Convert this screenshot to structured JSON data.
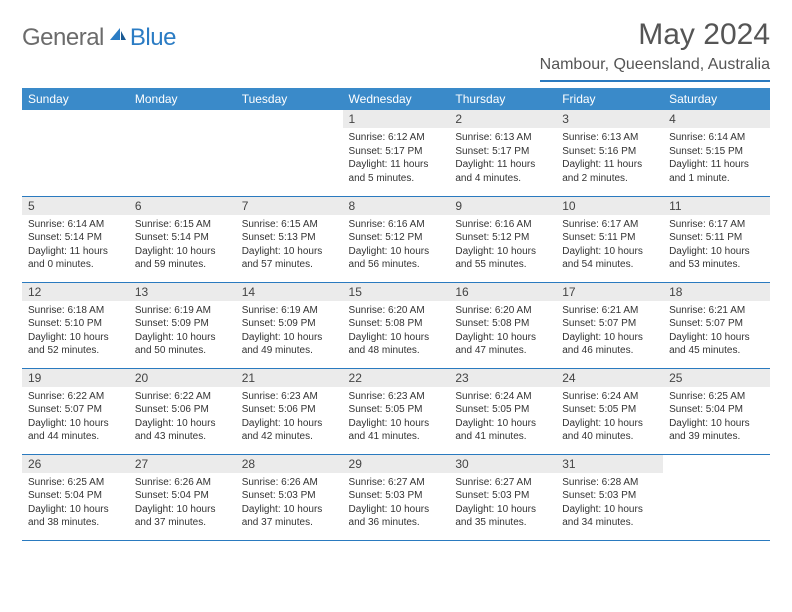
{
  "brand": {
    "part1": "General",
    "part2": "Blue"
  },
  "title": "May 2024",
  "location": "Nambour, Queensland, Australia",
  "colors": {
    "header_bg": "#3a8ac9",
    "header_text": "#ffffff",
    "border": "#2a7abf",
    "daynum_bg": "#ebebeb",
    "logo_gray": "#6b6b6b",
    "logo_blue": "#2b7cc4"
  },
  "weekdays": [
    "Sunday",
    "Monday",
    "Tuesday",
    "Wednesday",
    "Thursday",
    "Friday",
    "Saturday"
  ],
  "weeks": [
    [
      {
        "n": "",
        "sr": "",
        "ss": "",
        "dl": ""
      },
      {
        "n": "",
        "sr": "",
        "ss": "",
        "dl": ""
      },
      {
        "n": "",
        "sr": "",
        "ss": "",
        "dl": ""
      },
      {
        "n": "1",
        "sr": "Sunrise: 6:12 AM",
        "ss": "Sunset: 5:17 PM",
        "dl": "Daylight: 11 hours and 5 minutes."
      },
      {
        "n": "2",
        "sr": "Sunrise: 6:13 AM",
        "ss": "Sunset: 5:17 PM",
        "dl": "Daylight: 11 hours and 4 minutes."
      },
      {
        "n": "3",
        "sr": "Sunrise: 6:13 AM",
        "ss": "Sunset: 5:16 PM",
        "dl": "Daylight: 11 hours and 2 minutes."
      },
      {
        "n": "4",
        "sr": "Sunrise: 6:14 AM",
        "ss": "Sunset: 5:15 PM",
        "dl": "Daylight: 11 hours and 1 minute."
      }
    ],
    [
      {
        "n": "5",
        "sr": "Sunrise: 6:14 AM",
        "ss": "Sunset: 5:14 PM",
        "dl": "Daylight: 11 hours and 0 minutes."
      },
      {
        "n": "6",
        "sr": "Sunrise: 6:15 AM",
        "ss": "Sunset: 5:14 PM",
        "dl": "Daylight: 10 hours and 59 minutes."
      },
      {
        "n": "7",
        "sr": "Sunrise: 6:15 AM",
        "ss": "Sunset: 5:13 PM",
        "dl": "Daylight: 10 hours and 57 minutes."
      },
      {
        "n": "8",
        "sr": "Sunrise: 6:16 AM",
        "ss": "Sunset: 5:12 PM",
        "dl": "Daylight: 10 hours and 56 minutes."
      },
      {
        "n": "9",
        "sr": "Sunrise: 6:16 AM",
        "ss": "Sunset: 5:12 PM",
        "dl": "Daylight: 10 hours and 55 minutes."
      },
      {
        "n": "10",
        "sr": "Sunrise: 6:17 AM",
        "ss": "Sunset: 5:11 PM",
        "dl": "Daylight: 10 hours and 54 minutes."
      },
      {
        "n": "11",
        "sr": "Sunrise: 6:17 AM",
        "ss": "Sunset: 5:11 PM",
        "dl": "Daylight: 10 hours and 53 minutes."
      }
    ],
    [
      {
        "n": "12",
        "sr": "Sunrise: 6:18 AM",
        "ss": "Sunset: 5:10 PM",
        "dl": "Daylight: 10 hours and 52 minutes."
      },
      {
        "n": "13",
        "sr": "Sunrise: 6:19 AM",
        "ss": "Sunset: 5:09 PM",
        "dl": "Daylight: 10 hours and 50 minutes."
      },
      {
        "n": "14",
        "sr": "Sunrise: 6:19 AM",
        "ss": "Sunset: 5:09 PM",
        "dl": "Daylight: 10 hours and 49 minutes."
      },
      {
        "n": "15",
        "sr": "Sunrise: 6:20 AM",
        "ss": "Sunset: 5:08 PM",
        "dl": "Daylight: 10 hours and 48 minutes."
      },
      {
        "n": "16",
        "sr": "Sunrise: 6:20 AM",
        "ss": "Sunset: 5:08 PM",
        "dl": "Daylight: 10 hours and 47 minutes."
      },
      {
        "n": "17",
        "sr": "Sunrise: 6:21 AM",
        "ss": "Sunset: 5:07 PM",
        "dl": "Daylight: 10 hours and 46 minutes."
      },
      {
        "n": "18",
        "sr": "Sunrise: 6:21 AM",
        "ss": "Sunset: 5:07 PM",
        "dl": "Daylight: 10 hours and 45 minutes."
      }
    ],
    [
      {
        "n": "19",
        "sr": "Sunrise: 6:22 AM",
        "ss": "Sunset: 5:07 PM",
        "dl": "Daylight: 10 hours and 44 minutes."
      },
      {
        "n": "20",
        "sr": "Sunrise: 6:22 AM",
        "ss": "Sunset: 5:06 PM",
        "dl": "Daylight: 10 hours and 43 minutes."
      },
      {
        "n": "21",
        "sr": "Sunrise: 6:23 AM",
        "ss": "Sunset: 5:06 PM",
        "dl": "Daylight: 10 hours and 42 minutes."
      },
      {
        "n": "22",
        "sr": "Sunrise: 6:23 AM",
        "ss": "Sunset: 5:05 PM",
        "dl": "Daylight: 10 hours and 41 minutes."
      },
      {
        "n": "23",
        "sr": "Sunrise: 6:24 AM",
        "ss": "Sunset: 5:05 PM",
        "dl": "Daylight: 10 hours and 41 minutes."
      },
      {
        "n": "24",
        "sr": "Sunrise: 6:24 AM",
        "ss": "Sunset: 5:05 PM",
        "dl": "Daylight: 10 hours and 40 minutes."
      },
      {
        "n": "25",
        "sr": "Sunrise: 6:25 AM",
        "ss": "Sunset: 5:04 PM",
        "dl": "Daylight: 10 hours and 39 minutes."
      }
    ],
    [
      {
        "n": "26",
        "sr": "Sunrise: 6:25 AM",
        "ss": "Sunset: 5:04 PM",
        "dl": "Daylight: 10 hours and 38 minutes."
      },
      {
        "n": "27",
        "sr": "Sunrise: 6:26 AM",
        "ss": "Sunset: 5:04 PM",
        "dl": "Daylight: 10 hours and 37 minutes."
      },
      {
        "n": "28",
        "sr": "Sunrise: 6:26 AM",
        "ss": "Sunset: 5:03 PM",
        "dl": "Daylight: 10 hours and 37 minutes."
      },
      {
        "n": "29",
        "sr": "Sunrise: 6:27 AM",
        "ss": "Sunset: 5:03 PM",
        "dl": "Daylight: 10 hours and 36 minutes."
      },
      {
        "n": "30",
        "sr": "Sunrise: 6:27 AM",
        "ss": "Sunset: 5:03 PM",
        "dl": "Daylight: 10 hours and 35 minutes."
      },
      {
        "n": "31",
        "sr": "Sunrise: 6:28 AM",
        "ss": "Sunset: 5:03 PM",
        "dl": "Daylight: 10 hours and 34 minutes."
      },
      {
        "n": "",
        "sr": "",
        "ss": "",
        "dl": ""
      }
    ]
  ]
}
